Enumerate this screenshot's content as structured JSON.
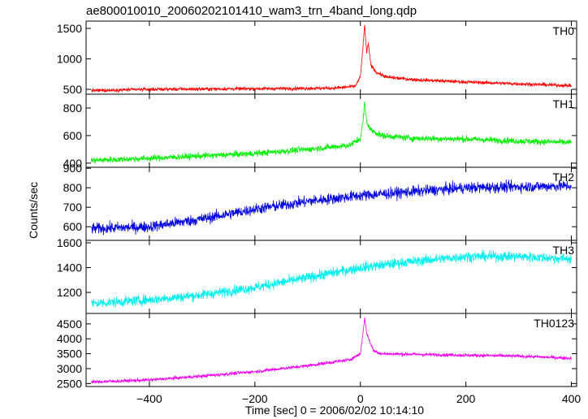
{
  "chart_data": {
    "type": "line",
    "title": "ae800010010_20060202101410_wam3_trn_4band_long.qdp",
    "xlabel": "Time [sec] 0 = 2006/02/02 10:14:10",
    "ylabel": "Counts/sec",
    "xlim": [
      -520,
      410
    ],
    "x_ticks": [
      -400,
      -200,
      0,
      200,
      400
    ],
    "x_tick_labels": [
      "−400",
      "−200",
      "0",
      "200",
      "400"
    ],
    "grid": false,
    "legend": "none",
    "panels": [
      {
        "name": "TH0",
        "color": "#ff0000",
        "ylim": [
          420,
          1620
        ],
        "y_ticks": [
          500,
          1000,
          1500
        ],
        "y_tick_labels": [
          "500",
          "1000",
          "1500"
        ],
        "points": [
          [
            -510,
            480
          ],
          [
            -400,
            500
          ],
          [
            -200,
            510
          ],
          [
            -50,
            520
          ],
          [
            -10,
            550
          ],
          [
            0,
            700
          ],
          [
            5,
            1200
          ],
          [
            8,
            1550
          ],
          [
            12,
            1100
          ],
          [
            15,
            1250
          ],
          [
            20,
            900
          ],
          [
            30,
            780
          ],
          [
            50,
            700
          ],
          [
            100,
            660
          ],
          [
            200,
            620
          ],
          [
            300,
            590
          ],
          [
            400,
            560
          ]
        ],
        "noise": 28
      },
      {
        "name": "TH1",
        "color": "#00ee00",
        "ylim": [
          370,
          900
        ],
        "y_ticks": [
          400,
          600,
          800
        ],
        "y_tick_labels": [
          "400",
          "600",
          "800"
        ],
        "points": [
          [
            -510,
            420
          ],
          [
            -400,
            435
          ],
          [
            -200,
            470
          ],
          [
            -100,
            500
          ],
          [
            -20,
            530
          ],
          [
            0,
            580
          ],
          [
            5,
            700
          ],
          [
            8,
            840
          ],
          [
            12,
            700
          ],
          [
            20,
            640
          ],
          [
            40,
            600
          ],
          [
            100,
            580
          ],
          [
            200,
            575
          ],
          [
            300,
            560
          ],
          [
            400,
            550
          ]
        ],
        "noise": 22
      },
      {
        "name": "TH2",
        "color": "#0000dd",
        "ylim": [
          530,
          905
        ],
        "y_ticks": [
          600,
          700,
          800,
          900
        ],
        "y_tick_labels": [
          "600",
          "700",
          "800",
          "900"
        ],
        "points": [
          [
            -510,
            590
          ],
          [
            -400,
            600
          ],
          [
            -300,
            640
          ],
          [
            -200,
            690
          ],
          [
            -100,
            730
          ],
          [
            0,
            760
          ],
          [
            100,
            780
          ],
          [
            200,
            800
          ],
          [
            300,
            805
          ],
          [
            400,
            810
          ]
        ],
        "noise": 28
      },
      {
        "name": "TH3",
        "color": "#00eeee",
        "ylim": [
          1030,
          1620
        ],
        "y_ticks": [
          1200,
          1400,
          1600
        ],
        "y_tick_labels": [
          "1200",
          "1400",
          "1600"
        ],
        "points": [
          [
            -510,
            1110
          ],
          [
            -400,
            1140
          ],
          [
            -300,
            1180
          ],
          [
            -200,
            1240
          ],
          [
            -100,
            1320
          ],
          [
            0,
            1400
          ],
          [
            100,
            1450
          ],
          [
            200,
            1490
          ],
          [
            300,
            1490
          ],
          [
            400,
            1470
          ]
        ],
        "noise": 40
      },
      {
        "name": "TH0123",
        "color": "#ee00ee",
        "ylim": [
          2400,
          4850
        ],
        "y_ticks": [
          2500,
          3000,
          3500,
          4000,
          4500
        ],
        "y_tick_labels": [
          "2500",
          "3000",
          "3500",
          "4000",
          "4500"
        ],
        "points": [
          [
            -510,
            2550
          ],
          [
            -400,
            2620
          ],
          [
            -300,
            2750
          ],
          [
            -200,
            2900
          ],
          [
            -100,
            3100
          ],
          [
            -20,
            3300
          ],
          [
            0,
            3500
          ],
          [
            5,
            4200
          ],
          [
            8,
            4700
          ],
          [
            12,
            4200
          ],
          [
            18,
            3900
          ],
          [
            25,
            3600
          ],
          [
            40,
            3500
          ],
          [
            100,
            3480
          ],
          [
            200,
            3450
          ],
          [
            300,
            3420
          ],
          [
            400,
            3350
          ]
        ],
        "noise": 55
      }
    ]
  }
}
